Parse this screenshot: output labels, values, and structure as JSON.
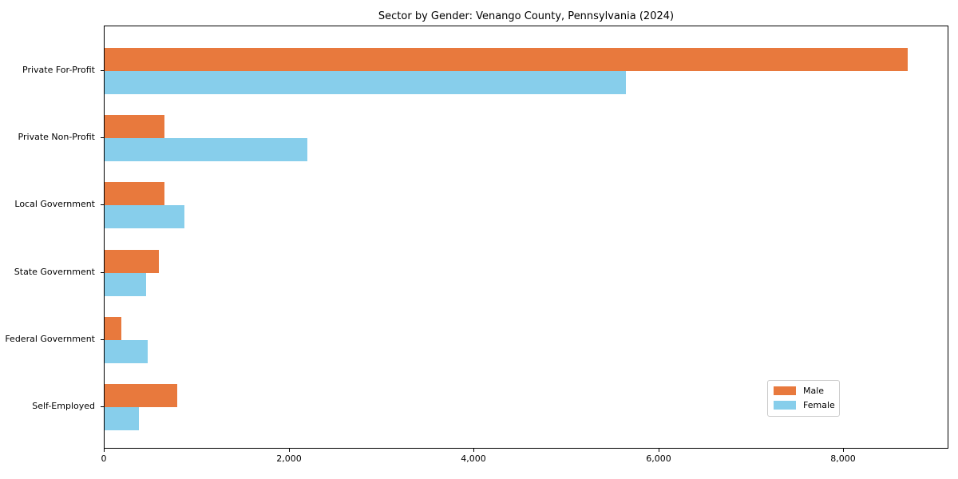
{
  "title": "Sector by Gender: Venango County, Pennsylvania (2024)",
  "chart_data": {
    "type": "bar",
    "orientation": "horizontal",
    "title": "Sector by Gender: Venango County, Pennsylvania (2024)",
    "xlabel": "",
    "ylabel": "",
    "categories": [
      "Private For-Profit",
      "Private Non-Profit",
      "Local Government",
      "State Government",
      "Federal Government",
      "Self-Employed"
    ],
    "series": [
      {
        "name": "Male",
        "color": "#e8793d",
        "values": [
          8690,
          650,
          650,
          590,
          180,
          785
        ]
      },
      {
        "name": "Female",
        "color": "#87ceeb",
        "values": [
          5640,
          2190,
          865,
          450,
          470,
          370
        ]
      }
    ],
    "xlim": [
      0,
      9140
    ],
    "x_ticks": [
      0,
      2000,
      4000,
      6000,
      8000
    ],
    "x_tick_labels": [
      "0",
      "2,000",
      "4,000",
      "6,000",
      "8,000"
    ],
    "grid": false,
    "legend_position": "lower right",
    "colors": {
      "male": "#e8793d",
      "female": "#87ceeb",
      "spine": "#000000",
      "legend_border": "#cccccc"
    }
  }
}
